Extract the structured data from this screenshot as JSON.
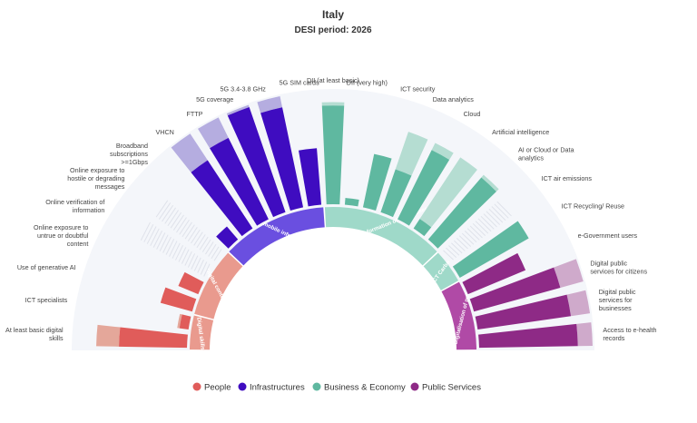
{
  "chart_data": {
    "type": "radial-bar",
    "title": "Italy",
    "subtitle": "DESI period: 2026",
    "value_range": [
      0,
      100
    ],
    "legend_position": "bottom",
    "legend": [
      {
        "name": "People",
        "color": "#e05c5a"
      },
      {
        "name": "Infrastructures",
        "color": "#3f0cc0"
      },
      {
        "name": "Business & Economy",
        "color": "#5fb8a0"
      },
      {
        "name": "Public Services",
        "color": "#8e2a86"
      }
    ],
    "groups": [
      {
        "label": "Digital skills",
        "category": "People",
        "color": "#e99a8e"
      },
      {
        "label": "Digital content",
        "category": "People",
        "color": "#e99a8e"
      },
      {
        "label": "Fixed and mobile infrastructure",
        "category": "Infrastructures",
        "color": "#6a4fe0"
      },
      {
        "label": "Digital transformation of businesses",
        "category": "Business & Economy",
        "color": "#9fd9c9"
      },
      {
        "label": "ICT Carbo",
        "category": "Business & Economy",
        "color": "#9fd9c9"
      },
      {
        "label": "Digitalisation of publ",
        "category": "Public Services",
        "color": "#b04aa6"
      }
    ],
    "indicators": [
      {
        "label": [
          "At least basic digital",
          "skills"
        ],
        "category": "People",
        "group": 0,
        "value": 60,
        "target": 80
      },
      {
        "label": [
          "ICT specialists"
        ],
        "category": "People",
        "group": 0,
        "value": 8,
        "target": 10
      },
      {
        "label": [
          "Use of generative AI"
        ],
        "category": "People",
        "group": 1,
        "value": 29,
        "target": null
      },
      {
        "label": [
          "Online exposure to",
          "untrue or doubtful",
          "content"
        ],
        "category": "People",
        "group": 1,
        "value": 19,
        "target": null
      },
      {
        "label": [
          "Online verification of",
          "information"
        ],
        "category": "People",
        "group": 1,
        "value": null,
        "target": null
      },
      {
        "label": [
          "Online exposure to",
          "hostile or degrading",
          "messages"
        ],
        "category": "People",
        "group": 1,
        "value": null,
        "target": null
      },
      {
        "label": [
          "Broadband",
          "subscriptions",
          ">=1Gbps"
        ],
        "category": "Infrastructures",
        "group": 2,
        "value": 15,
        "target": null
      },
      {
        "label": [
          "VHCN"
        ],
        "category": "Infrastructures",
        "group": 2,
        "value": 72,
        "target": 100
      },
      {
        "label": [
          "FTTP"
        ],
        "category": "Infrastructures",
        "group": 2,
        "value": 80,
        "target": 100
      },
      {
        "label": [
          "5G coverage"
        ],
        "category": "Infrastructures",
        "group": 2,
        "value": 98,
        "target": 100
      },
      {
        "label": [
          "5G 3.4-3.8 GHz"
        ],
        "category": "Infrastructures",
        "group": 2,
        "value": 90,
        "target": 100
      },
      {
        "label": [
          "5G SIM cards"
        ],
        "category": "Infrastructures",
        "group": 2,
        "value": 50,
        "target": null
      },
      {
        "label": [
          "DII (at least basic)"
        ],
        "category": "Business & Economy",
        "group": 3,
        "value": 87,
        "target": 90
      },
      {
        "label": [
          "DII (very high)"
        ],
        "category": "Business & Economy",
        "group": 3,
        "value": 6,
        "target": null
      },
      {
        "label": [
          "ICT security"
        ],
        "category": "Business & Economy",
        "group": 3,
        "value": 48,
        "target": null
      },
      {
        "label": [
          "Data analytics"
        ],
        "category": "Business & Economy",
        "group": 3,
        "value": 40,
        "target": 75
      },
      {
        "label": [
          "Cloud"
        ],
        "category": "Business & Economy",
        "group": 3,
        "value": 68,
        "target": 75
      },
      {
        "label": [
          "Artificial intelligence"
        ],
        "category": "Business & Economy",
        "group": 3,
        "value": 10,
        "target": 75
      },
      {
        "label": [
          "AI or Cloud or Data",
          "analytics"
        ],
        "category": "Business & Economy",
        "group": 3,
        "value": 72,
        "target": 75
      },
      {
        "label": [
          "ICT air emissions"
        ],
        "category": "Business & Economy",
        "group": 4,
        "value": null,
        "target": null
      },
      {
        "label": [
          "ICT Recycling/ Reuse"
        ],
        "category": "Business & Economy",
        "group": 4,
        "value": 70,
        "target": null
      },
      {
        "label": [
          "e-Government users"
        ],
        "category": "Public Services",
        "group": 5,
        "value": 55,
        "target": null
      },
      {
        "label": [
          "Digital public",
          "services for citizens"
        ],
        "category": "Public Services",
        "group": 5,
        "value": 79,
        "target": 100
      },
      {
        "label": [
          "Digital public",
          "services for",
          "businesses"
        ],
        "category": "Public Services",
        "group": 5,
        "value": 83,
        "target": 100
      },
      {
        "label": [
          "Access to e-health",
          "records"
        ],
        "category": "Public Services",
        "group": 5,
        "value": 87,
        "target": 100
      }
    ]
  }
}
